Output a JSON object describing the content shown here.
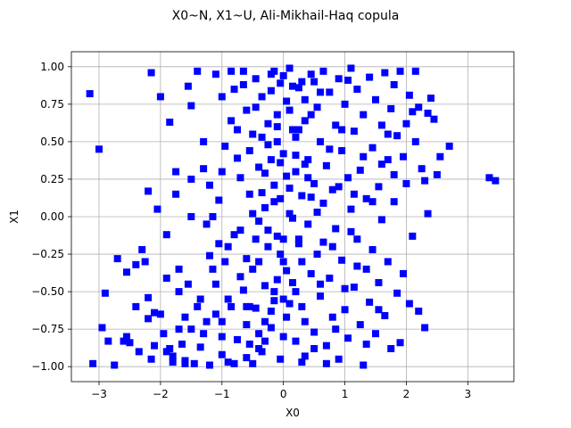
{
  "chart_data": {
    "type": "scatter",
    "title": "X0~N, X1~U, Ali-Mikhail-Haq copula",
    "xlabel": "X0",
    "ylabel": "X1",
    "xlim": [
      -3.45,
      3.75
    ],
    "ylim": [
      -1.1,
      1.1
    ],
    "xticks": [
      -3,
      -2,
      -1,
      0,
      1,
      2,
      3
    ],
    "xtick_labels": [
      "−3",
      "−2",
      "−1",
      "0",
      "1",
      "2",
      "3"
    ],
    "yticks": [
      -1.0,
      -0.75,
      -0.5,
      -0.25,
      0.0,
      0.25,
      0.5,
      0.75,
      1.0
    ],
    "ytick_labels": [
      "−1.00",
      "−0.75",
      "−0.50",
      "−0.25",
      "0.00",
      "0.25",
      "0.50",
      "0.75",
      "1.00"
    ],
    "grid": true,
    "marker": "square",
    "color": "#0000ff",
    "series": [
      {
        "points": [
          [
            -3.15,
            0.82
          ],
          [
            -3.0,
            0.45
          ],
          [
            -3.1,
            -0.98
          ],
          [
            -2.9,
            -0.51
          ],
          [
            -2.95,
            -0.74
          ],
          [
            -2.85,
            -0.83
          ],
          [
            -2.75,
            -0.99
          ],
          [
            -2.7,
            -0.28
          ],
          [
            -2.6,
            -0.83
          ],
          [
            -2.5,
            -0.84
          ],
          [
            -2.55,
            -0.37
          ],
          [
            -2.4,
            -0.32
          ],
          [
            -2.35,
            -0.9
          ],
          [
            -2.3,
            -0.22
          ],
          [
            -2.25,
            -0.3
          ],
          [
            -2.2,
            -0.54
          ],
          [
            -2.2,
            -0.68
          ],
          [
            -2.15,
            -0.95
          ],
          [
            -2.1,
            -0.86
          ],
          [
            -2.1,
            -0.64
          ],
          [
            -2.05,
            0.05
          ],
          [
            -2.2,
            0.17
          ],
          [
            -2.15,
            0.96
          ],
          [
            -2.0,
            0.8
          ],
          [
            -2.0,
            -0.65
          ],
          [
            -1.95,
            -0.78
          ],
          [
            -1.9,
            -0.41
          ],
          [
            -1.9,
            -0.12
          ],
          [
            -1.85,
            -0.88
          ],
          [
            -1.85,
            0.63
          ],
          [
            -1.8,
            -0.97
          ],
          [
            -1.8,
            -0.93
          ],
          [
            -1.75,
            0.15
          ],
          [
            -1.75,
            0.3
          ],
          [
            -1.7,
            -0.5
          ],
          [
            -1.7,
            -0.35
          ],
          [
            -1.65,
            -0.85
          ],
          [
            -1.6,
            -0.67
          ],
          [
            -1.6,
            -0.96
          ],
          [
            -1.55,
            0.87
          ],
          [
            -1.5,
            -0.75
          ],
          [
            -1.5,
            0.74
          ],
          [
            -1.45,
            -0.98
          ],
          [
            -1.4,
            0.97
          ],
          [
            -1.35,
            -0.87
          ],
          [
            -1.35,
            -0.55
          ],
          [
            -1.3,
            0.32
          ],
          [
            -1.25,
            -0.7
          ],
          [
            -1.2,
            0.21
          ],
          [
            -1.2,
            -0.26
          ],
          [
            -1.15,
            -0.35
          ],
          [
            -1.1,
            -0.45
          ],
          [
            -1.1,
            0.95
          ],
          [
            -1.05,
            0.11
          ],
          [
            -1.0,
            -0.92
          ],
          [
            -1.0,
            -0.8
          ],
          [
            -0.95,
            0.47
          ],
          [
            -0.9,
            -0.2
          ],
          [
            -0.85,
            0.64
          ],
          [
            -0.85,
            -0.6
          ],
          [
            -0.8,
            -0.98
          ],
          [
            -0.8,
            0.85
          ],
          [
            -0.75,
            0.39
          ],
          [
            -0.7,
            0.26
          ],
          [
            -0.7,
            -0.09
          ],
          [
            -0.65,
            -0.49
          ],
          [
            -0.65,
            0.97
          ],
          [
            -0.6,
            0.71
          ],
          [
            -0.6,
            -0.72
          ],
          [
            -0.55,
            0.15
          ],
          [
            -0.55,
            -0.85
          ],
          [
            -0.5,
            0.55
          ],
          [
            -0.5,
            -0.35
          ],
          [
            -0.45,
            0.92
          ],
          [
            -0.45,
            -0.61
          ],
          [
            -0.4,
            0.33
          ],
          [
            -0.4,
            -0.03
          ],
          [
            -0.35,
            0.8
          ],
          [
            -0.35,
            -0.9
          ],
          [
            -0.3,
            0.06
          ],
          [
            -0.3,
            -0.46
          ],
          [
            -0.25,
            0.48
          ],
          [
            -0.25,
            -0.2
          ],
          [
            -0.2,
            0.95
          ],
          [
            -0.2,
            -0.74
          ],
          [
            -0.15,
            0.21
          ],
          [
            -0.15,
            -0.56
          ],
          [
            -0.1,
            0.68
          ],
          [
            -0.1,
            -0.13
          ],
          [
            -0.05,
            0.89
          ],
          [
            -0.05,
            -0.95
          ],
          [
            0.0,
            0.42
          ],
          [
            0.0,
            -0.3
          ],
          [
            0.05,
            0.77
          ],
          [
            0.05,
            -0.67
          ],
          [
            0.1,
            0.02
          ],
          [
            0.1,
            0.99
          ],
          [
            0.15,
            -0.44
          ],
          [
            0.15,
            0.58
          ],
          [
            0.2,
            -0.83
          ],
          [
            0.2,
            0.3
          ],
          [
            0.25,
            0.86
          ],
          [
            0.25,
            -0.18
          ],
          [
            0.3,
            0.14
          ],
          [
            0.3,
            -0.6
          ],
          [
            0.35,
            0.64
          ],
          [
            0.35,
            -0.93
          ],
          [
            0.4,
            0.38
          ],
          [
            0.4,
            -0.05
          ],
          [
            0.45,
            0.95
          ],
          [
            0.45,
            -0.38
          ],
          [
            0.5,
            0.22
          ],
          [
            0.5,
            -0.77
          ],
          [
            0.55,
            0.73
          ],
          [
            0.55,
            -0.25
          ],
          [
            0.6,
            0.5
          ],
          [
            0.6,
            -0.53
          ],
          [
            0.65,
            0.09
          ],
          [
            0.65,
            0.97
          ],
          [
            0.7,
            -0.86
          ],
          [
            0.7,
            0.34
          ],
          [
            0.75,
            0.83
          ],
          [
            0.75,
            -0.41
          ],
          [
            0.8,
            0.18
          ],
          [
            0.8,
            -0.67
          ],
          [
            0.85,
            0.61
          ],
          [
            0.85,
            -0.08
          ],
          [
            0.9,
            0.92
          ],
          [
            0.9,
            -0.95
          ],
          [
            0.95,
            0.44
          ],
          [
            0.95,
            -0.29
          ],
          [
            1.0,
            0.75
          ],
          [
            1.0,
            -0.62
          ],
          [
            1.05,
            0.26
          ],
          [
            1.05,
            -0.81
          ],
          [
            1.1,
            0.99
          ],
          [
            1.1,
            0.05
          ],
          [
            1.15,
            -0.47
          ],
          [
            1.15,
            0.57
          ],
          [
            1.2,
            -0.15
          ],
          [
            1.2,
            0.85
          ],
          [
            1.25,
            -0.72
          ],
          [
            1.25,
            0.31
          ],
          [
            1.3,
            -0.99
          ],
          [
            1.3,
            0.68
          ],
          [
            1.35,
            -0.35
          ],
          [
            1.35,
            0.12
          ],
          [
            1.4,
            0.93
          ],
          [
            1.4,
            -0.57
          ],
          [
            1.45,
            0.46
          ],
          [
            1.45,
            -0.22
          ],
          [
            1.5,
            0.78
          ],
          [
            1.5,
            -0.78
          ],
          [
            1.55,
            0.2
          ],
          [
            1.55,
            -0.44
          ],
          [
            1.6,
            0.61
          ],
          [
            1.6,
            -0.02
          ],
          [
            1.65,
            0.96
          ],
          [
            1.65,
            -0.66
          ],
          [
            1.7,
            0.38
          ],
          [
            1.7,
            -0.3
          ],
          [
            1.75,
            0.72
          ],
          [
            1.75,
            -0.88
          ],
          [
            1.8,
            0.28
          ],
          [
            1.8,
            0.1
          ],
          [
            1.85,
            0.54
          ],
          [
            1.85,
            -0.51
          ],
          [
            1.9,
            0.97
          ],
          [
            1.9,
            -0.84
          ],
          [
            1.95,
            0.4
          ],
          [
            1.95,
            -0.38
          ],
          [
            2.0,
            0.62
          ],
          [
            2.0,
            0.22
          ],
          [
            2.05,
            0.81
          ],
          [
            2.05,
            -0.58
          ],
          [
            2.1,
            0.7
          ],
          [
            2.1,
            -0.13
          ],
          [
            2.15,
            0.5
          ],
          [
            2.15,
            0.97
          ],
          [
            2.2,
            -0.63
          ],
          [
            2.2,
            0.73
          ],
          [
            2.25,
            0.32
          ],
          [
            2.3,
            0.24
          ],
          [
            2.3,
            -0.74
          ],
          [
            2.35,
            0.02
          ],
          [
            2.35,
            0.69
          ],
          [
            2.4,
            0.79
          ],
          [
            2.5,
            0.28
          ],
          [
            2.7,
            0.47
          ],
          [
            3.35,
            0.26
          ],
          [
            3.45,
            0.24
          ],
          [
            -0.2,
            0.84
          ],
          [
            -0.1,
            0.6
          ],
          [
            0.0,
            0.94
          ],
          [
            0.1,
            0.71
          ],
          [
            0.2,
            0.53
          ],
          [
            -0.05,
            0.36
          ],
          [
            0.05,
            0.27
          ],
          [
            -0.15,
            0.1
          ],
          [
            0.15,
            -0.01
          ],
          [
            -0.25,
            -0.09
          ],
          [
            0.25,
            -0.15
          ],
          [
            -0.05,
            -0.25
          ],
          [
            0.05,
            -0.36
          ],
          [
            -0.15,
            -0.5
          ],
          [
            0.1,
            -0.58
          ],
          [
            -0.3,
            -0.7
          ],
          [
            0.0,
            -0.8
          ],
          [
            -0.4,
            -0.88
          ],
          [
            -0.6,
            -0.94
          ],
          [
            -0.9,
            -0.97
          ],
          [
            -1.2,
            -0.99
          ],
          [
            -1.6,
            -0.98
          ],
          [
            -0.5,
            0.02
          ],
          [
            -0.7,
            -0.4
          ],
          [
            -0.9,
            -0.55
          ],
          [
            -1.1,
            -0.65
          ],
          [
            -1.3,
            -0.78
          ],
          [
            -0.35,
            0.16
          ],
          [
            -0.55,
            0.44
          ],
          [
            -0.75,
            0.58
          ],
          [
            -1.0,
            0.8
          ],
          [
            0.3,
            0.9
          ],
          [
            0.45,
            0.68
          ],
          [
            0.6,
            0.83
          ],
          [
            0.75,
            0.45
          ],
          [
            0.9,
            0.2
          ],
          [
            1.05,
            0.91
          ],
          [
            0.35,
            -0.7
          ],
          [
            0.5,
            -0.88
          ],
          [
            0.7,
            -0.98
          ],
          [
            0.85,
            -0.75
          ],
          [
            1.0,
            -0.48
          ],
          [
            1.2,
            -0.33
          ],
          [
            -0.45,
            0.73
          ],
          [
            -0.65,
            0.88
          ],
          [
            -0.85,
            0.97
          ],
          [
            -0.2,
            -0.63
          ],
          [
            -0.4,
            -0.78
          ],
          [
            -0.6,
            -0.28
          ],
          [
            -0.8,
            -0.12
          ],
          [
            -1.05,
            -0.18
          ],
          [
            -1.25,
            -0.05
          ],
          [
            0.55,
            0.03
          ],
          [
            0.65,
            -0.17
          ],
          [
            0.4,
            0.26
          ],
          [
            0.2,
            0.41
          ],
          [
            -0.3,
            0.29
          ],
          [
            -0.1,
            0.5
          ],
          [
            0.1,
            0.19
          ],
          [
            -0.55,
            -0.6
          ],
          [
            0.0,
            -0.15
          ],
          [
            -1.4,
            -0.6
          ],
          [
            -1.55,
            -0.45
          ],
          [
            -1.7,
            -0.75
          ],
          [
            -1.9,
            -0.9
          ],
          [
            -1.5,
            0.0
          ],
          [
            1.45,
            0.1
          ],
          [
            1.6,
            0.35
          ],
          [
            1.7,
            0.55
          ],
          [
            1.8,
            0.88
          ],
          [
            1.3,
            0.4
          ],
          [
            1.15,
            0.15
          ],
          [
            0.95,
            0.58
          ],
          [
            1.35,
            -0.85
          ],
          [
            1.55,
            -0.62
          ],
          [
            -2.4,
            -0.6
          ],
          [
            -2.55,
            -0.8
          ],
          [
            2.45,
            0.65
          ],
          [
            2.55,
            0.4
          ],
          [
            -1.3,
            0.5
          ],
          [
            -1.5,
            0.25
          ],
          [
            -1.15,
            0.0
          ],
          [
            -1.0,
            0.3
          ],
          [
            -0.95,
            -0.3
          ],
          [
            -0.45,
            -0.15
          ],
          [
            0.3,
            -0.3
          ],
          [
            0.6,
            -0.45
          ],
          [
            0.8,
            -0.2
          ],
          [
            1.1,
            -0.1
          ],
          [
            -0.25,
            0.62
          ],
          [
            0.15,
            0.87
          ],
          [
            0.35,
            0.78
          ],
          [
            -0.15,
            0.97
          ],
          [
            0.5,
            0.9
          ],
          [
            -0.35,
            0.53
          ],
          [
            0.25,
            0.58
          ],
          [
            -0.05,
            0.12
          ],
          [
            0.35,
            0.35
          ],
          [
            -0.2,
            0.38
          ],
          [
            0.45,
            0.13
          ],
          [
            -0.4,
            -0.3
          ],
          [
            0.2,
            -0.5
          ],
          [
            -0.1,
            -0.42
          ],
          [
            0.0,
            -0.55
          ],
          [
            -0.3,
            -0.83
          ],
          [
            0.3,
            -0.97
          ],
          [
            -0.5,
            -0.98
          ],
          [
            -0.75,
            -0.82
          ],
          [
            -1.0,
            -0.7
          ],
          [
            -0.6,
            -0.6
          ]
        ]
      }
    ]
  }
}
